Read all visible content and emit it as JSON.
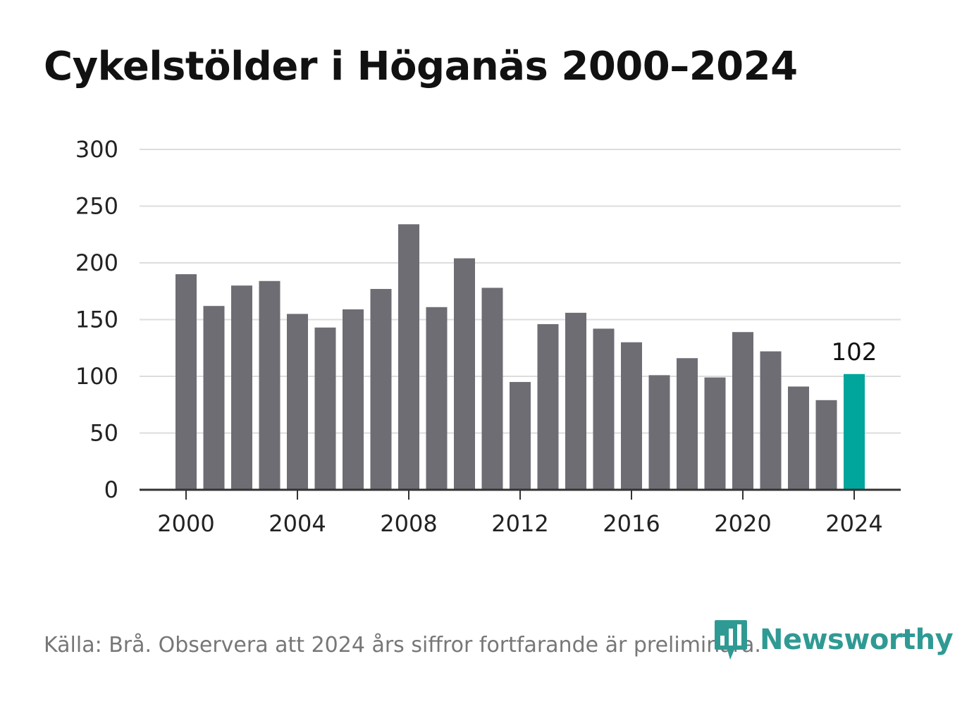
{
  "title": "Cykelstölder i Höganäs 2000–2024",
  "source": "Källa: Brå. Observera att 2024 års siffror fortfarande är preliminära.",
  "logo": {
    "text": "Newsworthy",
    "icon": "newsworthy-bar-chart-icon"
  },
  "colors": {
    "bar": "#6e6d74",
    "highlight": "#00a59b",
    "grid": "#dddddd",
    "axis": "#333333",
    "logo": "#2f9a93"
  },
  "chart_data": {
    "type": "bar",
    "x": [
      2000,
      2001,
      2002,
      2003,
      2004,
      2005,
      2006,
      2007,
      2008,
      2009,
      2010,
      2011,
      2012,
      2013,
      2014,
      2015,
      2016,
      2017,
      2018,
      2019,
      2020,
      2021,
      2022,
      2023,
      2024
    ],
    "values": [
      190,
      162,
      180,
      184,
      155,
      143,
      159,
      177,
      234,
      161,
      204,
      178,
      95,
      146,
      156,
      142,
      130,
      101,
      116,
      99,
      139,
      122,
      91,
      79,
      102
    ],
    "highlight_index": 24,
    "data_labels": [
      {
        "index": 24,
        "text": "102"
      }
    ],
    "x_ticks": [
      2000,
      2004,
      2008,
      2012,
      2016,
      2020,
      2024
    ],
    "y_ticks": [
      0,
      50,
      100,
      150,
      200,
      250,
      300
    ],
    "ylim": [
      0,
      300
    ],
    "grid": true,
    "legend": false,
    "xlabel": "",
    "ylabel": ""
  }
}
